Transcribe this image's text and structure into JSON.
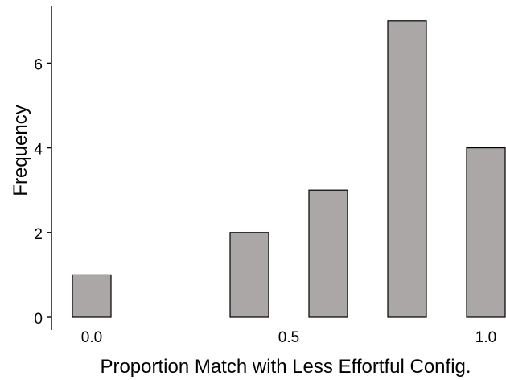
{
  "chart_data": {
    "type": "bar",
    "xlabel": "Proportion Match with Less Effortful Config.",
    "ylabel": "Frequency",
    "bar_color": "#aba7a6",
    "grid": false,
    "x_ticks": [
      "0.0",
      "0.5",
      "1.0"
    ],
    "y_ticks": [
      "0",
      "2",
      "4",
      "6"
    ],
    "ylim": [
      0,
      7.4
    ],
    "bars": [
      {
        "x": 0.0,
        "value": 1
      },
      {
        "x": 0.4,
        "value": 2
      },
      {
        "x": 0.6,
        "value": 3
      },
      {
        "x": 0.8,
        "value": 7
      },
      {
        "x": 1.0,
        "value": 4
      }
    ]
  }
}
